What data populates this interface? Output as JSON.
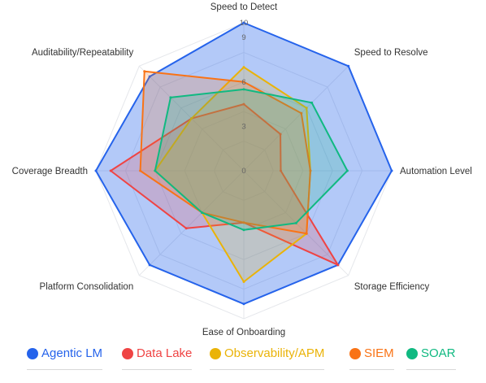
{
  "chart_data": {
    "type": "radar",
    "title": "",
    "axes": [
      "Speed to Detect",
      "Speed to Resolve",
      "Automation Level",
      "Storage Efficiency",
      "Ease of Onboarding",
      "Platform Consolidation",
      "Coverage Breadth",
      "Auditability/Repeatability"
    ],
    "radial_ticks": [
      "0",
      "3",
      "6",
      "9",
      "10"
    ],
    "range": [
      0,
      10
    ],
    "grid": true,
    "legend_position": "bottom",
    "series": [
      {
        "name": "Agentic LM",
        "color": "#2563eb",
        "values": [
          10,
          10,
          10,
          9,
          9,
          9,
          10,
          9
        ]
      },
      {
        "name": "Data Lake",
        "color": "#ef4444",
        "values": [
          4.5,
          3.5,
          2.5,
          9,
          3.5,
          5.5,
          9,
          5
        ]
      },
      {
        "name": "Observability/APM",
        "color": "#eab308",
        "values": [
          7,
          6,
          4.5,
          6,
          7.5,
          4,
          6,
          5
        ]
      },
      {
        "name": "SIEM",
        "color": "#f97316",
        "values": [
          6,
          5.5,
          4.5,
          6,
          3.5,
          4,
          7,
          9.5
        ]
      },
      {
        "name": "SOAR",
        "color": "#10b981",
        "values": [
          5.5,
          6.5,
          7,
          5,
          4,
          4,
          6,
          7
        ]
      }
    ]
  }
}
